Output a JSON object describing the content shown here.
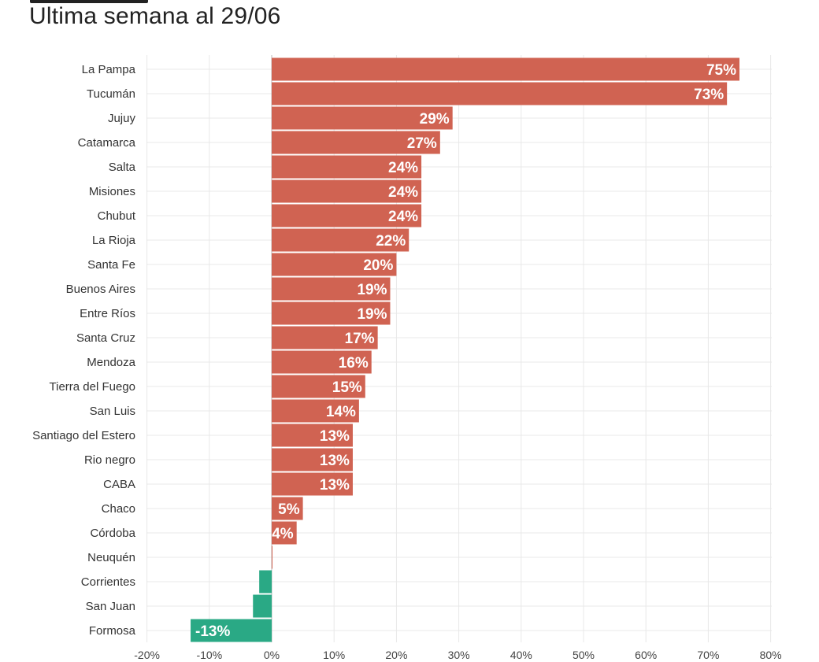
{
  "subtitle": "Ultima semana al 29/06",
  "colors": {
    "positive": "#d06352",
    "negative": "#2aa985",
    "grid": "#e8e8e8",
    "zero_line": "#bbbbbb"
  },
  "chart_data": {
    "type": "bar",
    "orientation": "horizontal",
    "title": "",
    "subtitle": "Ultima semana al 29/06",
    "xlabel": "",
    "ylabel": "",
    "xlim": [
      -20,
      80
    ],
    "x_ticks": [
      -20,
      -10,
      0,
      10,
      20,
      30,
      40,
      50,
      60,
      70,
      80
    ],
    "x_tick_labels": [
      "-20%",
      "-10%",
      "0%",
      "10%",
      "20%",
      "30%",
      "40%",
      "50%",
      "60%",
      "70%",
      "80%"
    ],
    "grid": true,
    "legend": "none",
    "categories": [
      "La Pampa",
      "Tucumán",
      "Jujuy",
      "Catamarca",
      "Salta",
      "Misiones",
      "Chubut",
      "La Rioja",
      "Santa Fe",
      "Buenos Aires",
      "Entre Ríos",
      "Santa Cruz",
      "Mendoza",
      "Tierra del Fuego",
      "San Luis",
      "Santiago del Estero",
      "Rio negro",
      "CABA",
      "Chaco",
      "Córdoba",
      "Neuquén",
      "Corrientes",
      "San Juan",
      "Formosa"
    ],
    "values": [
      75,
      73,
      29,
      27,
      24,
      24,
      24,
      22,
      20,
      19,
      19,
      17,
      16,
      15,
      14,
      13,
      13,
      13,
      5,
      4,
      0,
      -2,
      -3,
      -13
    ],
    "data_labels": [
      "75%",
      "73%",
      "29%",
      "27%",
      "24%",
      "24%",
      "24%",
      "22%",
      "20%",
      "19%",
      "19%",
      "17%",
      "16%",
      "15%",
      "14%",
      "13%",
      "13%",
      "13%",
      "5%",
      "4%",
      "",
      "",
      "",
      "-13%"
    ]
  }
}
